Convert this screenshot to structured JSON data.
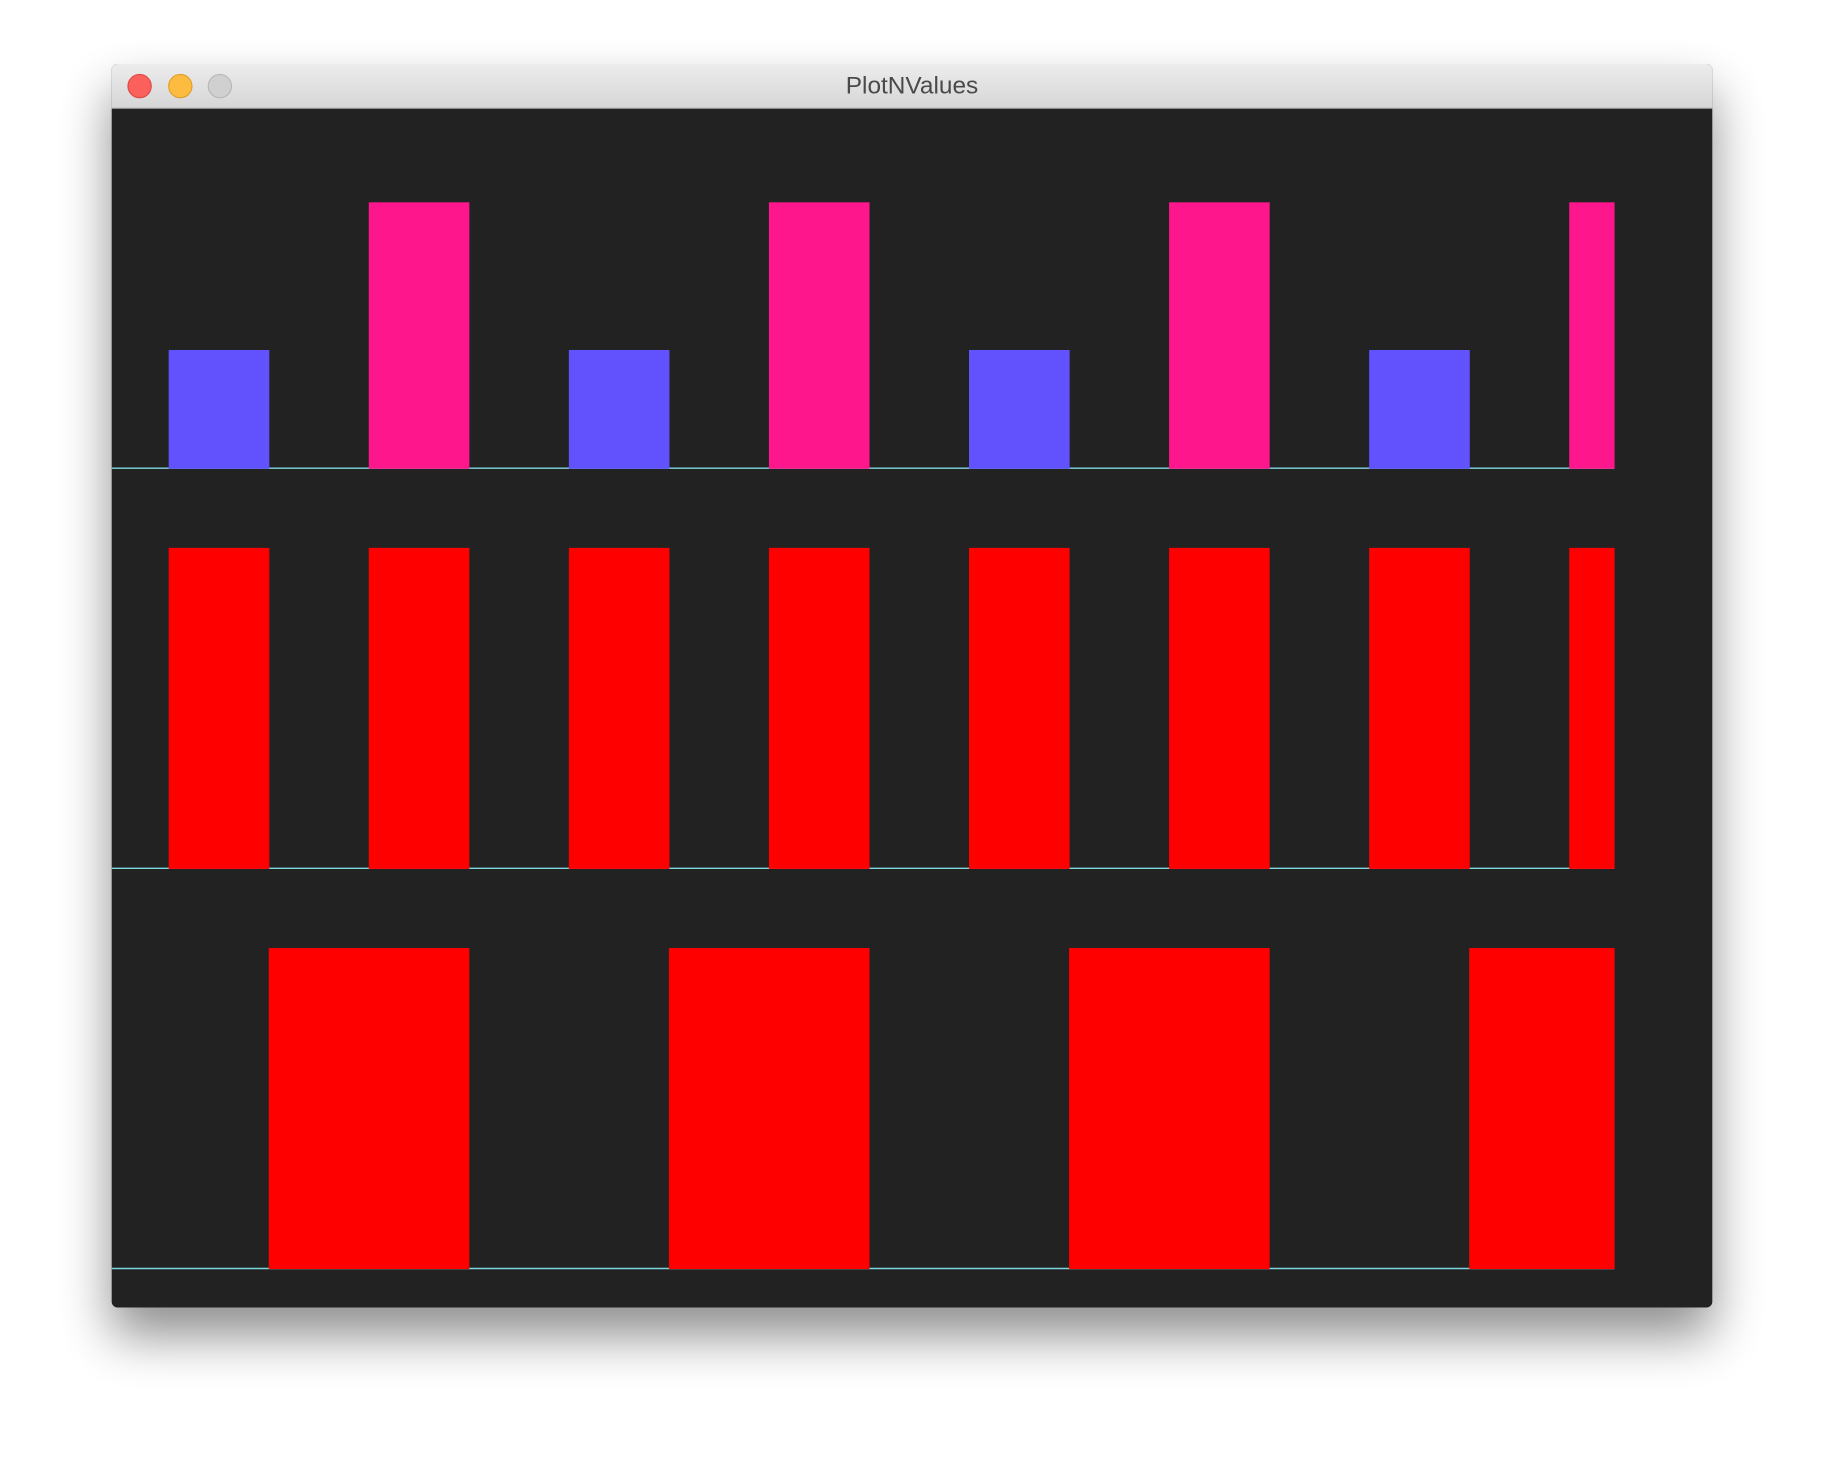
{
  "window": {
    "title": "PlotNValues"
  },
  "chart_data": [
    {
      "type": "bar",
      "ylim": [
        0,
        1
      ],
      "series": [
        {
          "color": "#6152fe",
          "values": [
            0.37,
            null,
            null,
            null,
            0.37,
            null,
            null,
            null,
            0.37,
            null,
            null,
            null,
            0.37,
            null,
            null
          ]
        },
        {
          "color": "#fe168c",
          "values": [
            null,
            null,
            0.83,
            null,
            null,
            null,
            0.83,
            null,
            null,
            null,
            0.83,
            null,
            null,
            null,
            0.83
          ]
        }
      ]
    },
    {
      "type": "bar",
      "ylim": [
        0,
        1
      ],
      "series": [
        {
          "color": "#fe0000",
          "values": [
            1,
            null,
            1,
            null,
            1,
            null,
            1,
            null,
            1,
            null,
            1,
            null,
            1,
            null,
            1
          ]
        }
      ]
    },
    {
      "type": "bar",
      "ylim": [
        0,
        1
      ],
      "series": [
        {
          "color": "#fe0000",
          "values": [
            0,
            1,
            1,
            0,
            0,
            1,
            1,
            0,
            0,
            1,
            1,
            0,
            0,
            1,
            1
          ]
        }
      ]
    }
  ]
}
